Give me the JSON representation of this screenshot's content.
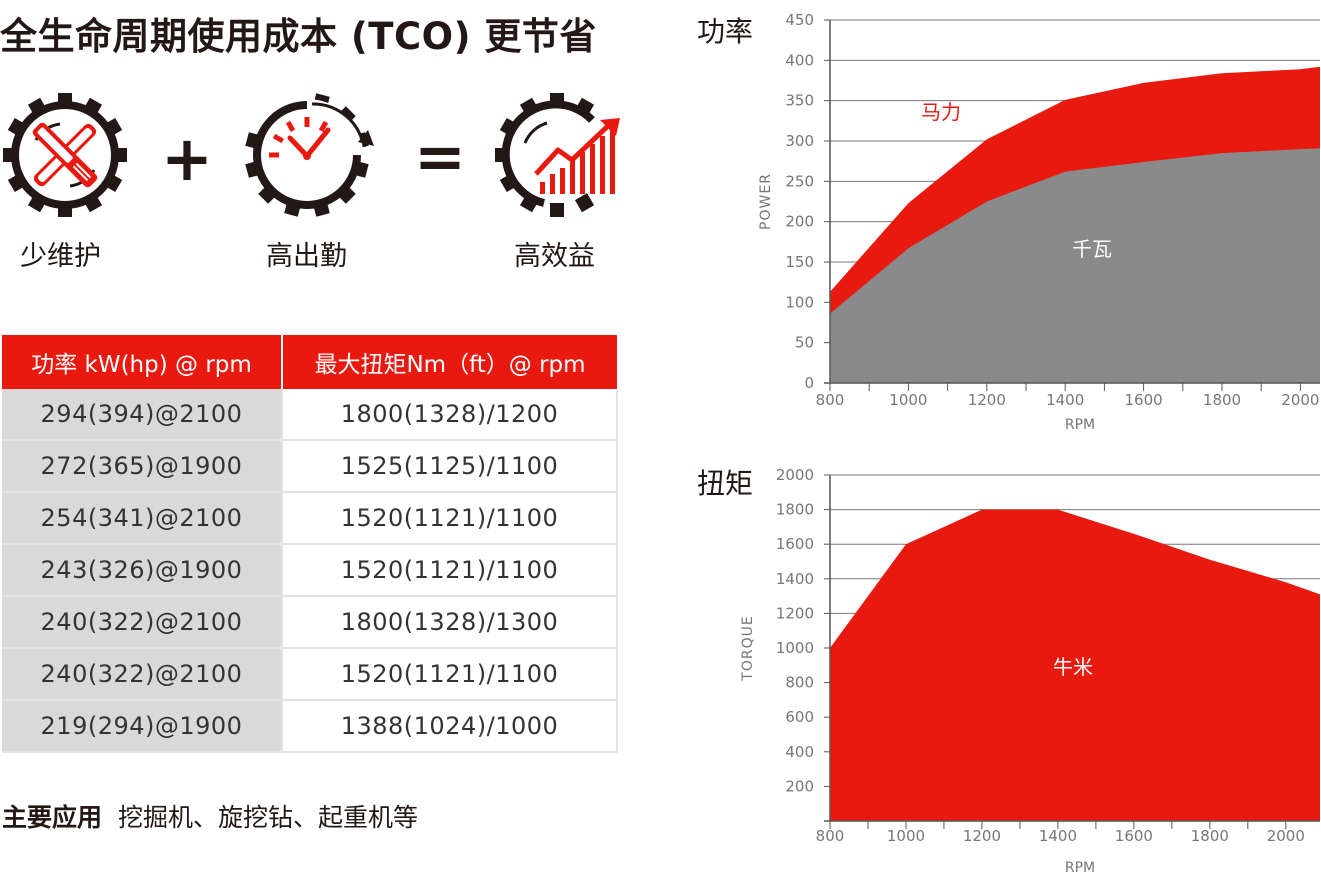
{
  "headline": "全生命周期使用成本 (TCO) 更节省",
  "equation": {
    "icons": [
      {
        "label": "少维护",
        "icon": "gear-wrench-icon"
      },
      {
        "label": "高出勤",
        "icon": "gear-clock-icon"
      },
      {
        "label": "高效益",
        "icon": "gear-growth-chart-icon"
      }
    ],
    "plus": "+",
    "equals": "="
  },
  "table": {
    "headers": [
      "功率 kW(hp) @ rpm",
      "最大扭矩Nm（ft）@ rpm"
    ],
    "rows": [
      [
        "294(394)@2100",
        "1800(1328)/1200"
      ],
      [
        "272(365)@1900",
        "1525(1125)/1100"
      ],
      [
        "254(341)@2100",
        "1520(1121)/1100"
      ],
      [
        "243(326)@1900",
        "1520(1121)/1100"
      ],
      [
        "240(322)@2100",
        "1800(1328)/1300"
      ],
      [
        "240(322)@2100",
        "1520(1121)/1100"
      ],
      [
        "219(294)@1900",
        "1388(1024)/1000"
      ]
    ]
  },
  "applications": {
    "label": "主要应用",
    "text": "挖掘机、旋挖钻、起重机等"
  },
  "colors": {
    "accent": "#e8190f",
    "gray_area": "#8a8a8a",
    "gray_cell": "#d9d9d9"
  },
  "chart_data": [
    {
      "type": "area",
      "title": "功率",
      "xlabel": "RPM",
      "ylabel": "POWER",
      "x": [
        800,
        1000,
        1200,
        1400,
        1600,
        1800,
        2000,
        2100
      ],
      "xticks": [
        800,
        1000,
        1200,
        1400,
        1600,
        1800,
        2000
      ],
      "yticks": [
        0,
        50,
        100,
        150,
        200,
        250,
        300,
        350,
        400,
        450
      ],
      "xlim": [
        800,
        2050
      ],
      "ylim": [
        0,
        450
      ],
      "grid": true,
      "series": [
        {
          "name": "马力",
          "values": [
            113,
            223,
            302,
            351,
            372,
            384,
            389,
            392
          ]
        },
        {
          "name": "千瓦",
          "values": [
            86,
            167,
            225,
            262,
            274,
            285,
            290,
            291
          ]
        }
      ]
    },
    {
      "type": "area",
      "title": "扭矩",
      "xlabel": "RPM",
      "ylabel": "TORQUE",
      "x": [
        800,
        1000,
        1200,
        1400,
        1600,
        1800,
        2000,
        2100
      ],
      "xticks": [
        800,
        1000,
        1200,
        1400,
        1600,
        1800,
        2000
      ],
      "yticks": [
        200,
        400,
        600,
        800,
        1000,
        1200,
        1400,
        1600,
        1800,
        2000
      ],
      "xlim": [
        800,
        2090
      ],
      "ylim": [
        0,
        2000
      ],
      "grid": true,
      "series": [
        {
          "name": "牛米",
          "values": [
            1000,
            1600,
            1800,
            1800,
            1660,
            1510,
            1380,
            1310
          ]
        }
      ]
    }
  ]
}
